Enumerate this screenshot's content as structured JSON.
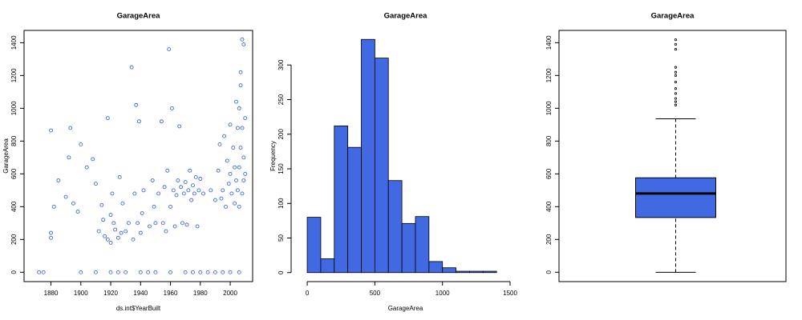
{
  "chart_data": [
    {
      "type": "scatter",
      "title": "GarageArea",
      "xlabel": "ds.int$YearBuilt",
      "ylabel": "GarageArea",
      "color": "#4169e1",
      "x": [
        1872,
        1875,
        1880,
        1880,
        1880,
        1882,
        1885,
        1890,
        1892,
        1893,
        1895,
        1898,
        1900,
        1900,
        1904,
        1908,
        1910,
        1910,
        1912,
        1914,
        1915,
        1916,
        1918,
        1918,
        1920,
        1920,
        1920,
        1921,
        1922,
        1923,
        1925,
        1925,
        1926,
        1927,
        1928,
        1930,
        1930,
        1932,
        1934,
        1935,
        1936,
        1937,
        1938,
        1939,
        1940,
        1940,
        1941,
        1942,
        1945,
        1946,
        1948,
        1949,
        1950,
        1950,
        1952,
        1954,
        1955,
        1956,
        1957,
        1958,
        1959,
        1960,
        1960,
        1961,
        1962,
        1963,
        1964,
        1965,
        1966,
        1967,
        1968,
        1969,
        1970,
        1970,
        1971,
        1972,
        1973,
        1974,
        1975,
        1975,
        1976,
        1977,
        1978,
        1979,
        1980,
        1980,
        1982,
        1985,
        1987,
        1990,
        1990,
        1992,
        1993,
        1994,
        1995,
        1995,
        1996,
        1997,
        1998,
        1999,
        2000,
        2000,
        2000,
        2001,
        2002,
        2003,
        2003,
        2004,
        2004,
        2005,
        2005,
        2006,
        2006,
        2006,
        2007,
        2007,
        2007,
        2008,
        2008,
        2008,
        2009,
        2009,
        2009,
        2010,
        2010,
        2006
      ],
      "y": [
        0,
        0,
        865,
        240,
        210,
        400,
        560,
        460,
        700,
        880,
        420,
        370,
        780,
        0,
        640,
        690,
        540,
        0,
        250,
        410,
        320,
        220,
        940,
        200,
        0,
        350,
        180,
        480,
        300,
        260,
        210,
        0,
        580,
        240,
        420,
        0,
        250,
        300,
        1250,
        200,
        480,
        1020,
        300,
        920,
        0,
        240,
        360,
        500,
        0,
        280,
        560,
        400,
        300,
        0,
        480,
        920,
        300,
        520,
        250,
        620,
        1360,
        0,
        400,
        1000,
        500,
        280,
        470,
        560,
        890,
        520,
        300,
        480,
        0,
        550,
        290,
        500,
        620,
        440,
        0,
        530,
        480,
        580,
        280,
        500,
        0,
        570,
        480,
        0,
        500,
        0,
        440,
        620,
        780,
        450,
        0,
        500,
        830,
        400,
        680,
        540,
        0,
        600,
        900,
        480,
        760,
        420,
        640,
        1040,
        560,
        500,
        880,
        1000,
        640,
        400,
        760,
        1220,
        1140,
        1420,
        880,
        480,
        1390,
        700,
        560,
        600,
        940,
        0
      ],
      "xlim": [
        1862,
        2015
      ],
      "ylim": [
        -57,
        1475
      ],
      "xticks": [
        1880,
        1900,
        1920,
        1940,
        1960,
        1980,
        2000
      ],
      "yticks": [
        0,
        200,
        400,
        600,
        800,
        1000,
        1200,
        1400
      ]
    },
    {
      "type": "histogram",
      "title": "GarageArea",
      "xlabel": "GarageArea",
      "ylabel": "Frequency",
      "color": "#4169e1",
      "bins": [
        0,
        100,
        200,
        300,
        400,
        500,
        600,
        700,
        800,
        900,
        1000,
        1100,
        1200,
        1300,
        1400
      ],
      "counts": [
        80,
        20,
        212,
        181,
        337,
        310,
        133,
        71,
        81,
        16,
        7,
        2,
        2,
        2
      ],
      "xlim": [
        -119,
        1571
      ],
      "ylim": [
        -13,
        350
      ],
      "xticks": [
        0,
        500,
        1000,
        1500
      ],
      "yticks": [
        0,
        50,
        100,
        150,
        200,
        250,
        300
      ]
    },
    {
      "type": "box",
      "title": "GarageArea",
      "color": "#4169e1",
      "whisker_low": 0,
      "q1": 334,
      "median": 480,
      "q3": 576,
      "whisker_high": 936,
      "outliers": [
        1020,
        1040,
        1060,
        1090,
        1120,
        1160,
        1200,
        1220,
        1250,
        1360,
        1390,
        1418
      ],
      "ylim": [
        -57,
        1475
      ],
      "yticks": [
        0,
        200,
        400,
        600,
        800,
        1000,
        1200,
        1400
      ]
    }
  ]
}
